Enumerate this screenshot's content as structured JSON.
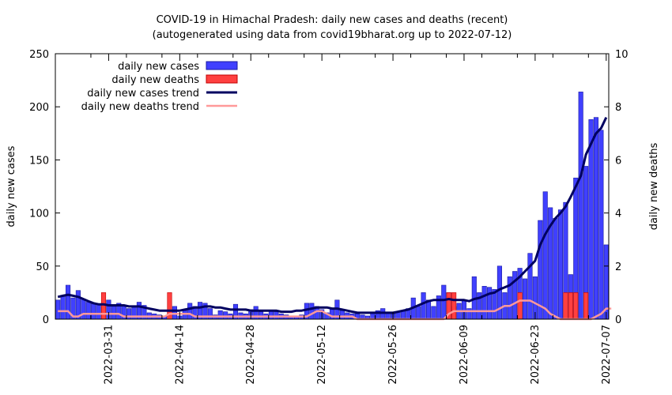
{
  "chart_data": {
    "type": "bar",
    "title": "COVID-19 in Himachal Pradesh: daily new cases and deaths (recent)",
    "subtitle": "(autogenerated using data from covid19bharat.org up to 2022-07-12)",
    "ylabel": "daily new cases",
    "y2label": "daily new deaths",
    "ylim": [
      0,
      250
    ],
    "y2lim": [
      0,
      10
    ],
    "yticks": [
      "0",
      "50",
      "100",
      "150",
      "200",
      "250"
    ],
    "y2ticks": [
      "0",
      "2",
      "4",
      "6",
      "8",
      "10"
    ],
    "x_start": "2022-03-21",
    "x_end": "2022-07-12",
    "xtick_labels": [
      "2022-03-31",
      "2022-04-14",
      "2022-04-28",
      "2022-05-12",
      "2022-05-26",
      "2022-06-09",
      "2022-06-23",
      "2022-07-07"
    ],
    "xtick_offsets": [
      10,
      24,
      38,
      52,
      66,
      80,
      94,
      108
    ],
    "legend": {
      "position": "top-left",
      "entries": [
        "daily new cases",
        "daily new deaths",
        "daily new cases trend",
        "daily new deaths trend"
      ]
    },
    "colors": {
      "cases": "#4040ff",
      "cases_edge": "#1a1aa0",
      "deaths": "#ff4040",
      "deaths_edge": "#c00000",
      "cases_trend": "#000060",
      "deaths_trend": "#ff9999"
    },
    "series": [
      {
        "name": "daily new cases",
        "values": [
          18,
          22,
          32,
          20,
          27,
          19,
          16,
          15,
          14,
          12,
          18,
          12,
          15,
          13,
          10,
          12,
          16,
          13,
          6,
          5,
          4,
          3,
          8,
          12,
          3,
          8,
          15,
          12,
          16,
          15,
          10,
          4,
          8,
          7,
          5,
          14,
          6,
          5,
          9,
          12,
          7,
          5,
          8,
          7,
          5,
          4,
          3,
          3,
          4,
          15,
          15,
          12,
          9,
          6,
          10,
          18,
          8,
          6,
          5,
          5,
          4,
          3,
          6,
          8,
          10,
          6,
          5,
          7,
          8,
          10,
          20,
          12,
          25,
          18,
          12,
          22,
          32,
          25,
          12,
          15,
          18,
          10,
          40,
          25,
          31,
          30,
          28,
          50,
          25,
          40,
          45,
          48,
          38,
          62,
          40,
          93,
          120,
          105,
          95,
          103,
          110,
          42,
          133,
          214,
          144,
          188,
          190,
          178,
          70
        ],
        "trend": [
          21,
          22,
          23,
          22,
          21,
          19,
          17,
          15,
          14,
          14,
          13,
          13,
          13,
          13,
          12,
          12,
          12,
          11,
          10,
          9,
          8,
          8,
          8,
          8,
          8,
          9,
          10,
          11,
          11,
          12,
          12,
          11,
          11,
          10,
          9,
          9,
          9,
          9,
          8,
          8,
          8,
          8,
          8,
          8,
          7,
          7,
          7,
          8,
          8,
          9,
          10,
          11,
          11,
          11,
          10,
          10,
          9,
          8,
          7,
          6,
          6,
          6,
          6,
          6,
          6,
          6,
          6,
          7,
          8,
          9,
          11,
          13,
          15,
          17,
          18,
          18,
          18,
          19,
          18,
          18,
          18,
          17,
          19,
          20,
          22,
          24,
          25,
          28,
          30,
          32,
          36,
          40,
          45,
          50,
          55,
          70,
          80,
          88,
          95,
          100,
          106,
          115,
          125,
          135,
          155,
          165,
          175,
          180,
          190
        ]
      },
      {
        "name": "daily new deaths",
        "values": [
          0,
          0,
          0,
          0,
          0,
          0,
          0,
          0,
          0,
          1,
          0,
          0,
          0,
          0,
          0,
          0,
          0,
          0,
          0,
          0,
          0,
          0,
          1,
          0,
          0,
          0,
          0,
          0,
          0,
          0,
          0,
          0,
          0,
          0,
          0,
          0,
          0,
          0,
          0,
          0,
          0,
          0,
          0,
          0,
          0,
          0,
          0,
          0,
          0,
          0,
          0,
          0,
          0,
          0,
          0,
          0,
          0,
          0,
          0,
          0,
          0,
          0,
          0,
          0,
          0,
          0,
          0,
          0,
          0,
          0,
          0,
          0,
          0,
          0,
          0,
          0,
          0,
          1,
          1,
          0,
          0,
          0,
          0,
          0,
          0,
          0,
          0,
          0,
          0,
          0,
          0,
          1,
          0,
          0,
          0,
          0,
          0,
          0,
          0,
          0,
          1,
          1,
          1,
          0,
          1,
          0,
          0,
          0,
          0
        ],
        "trend": [
          0.3,
          0.3,
          0.3,
          0.1,
          0.1,
          0.2,
          0.2,
          0.2,
          0.2,
          0.2,
          0.2,
          0.2,
          0.2,
          0.1,
          0.1,
          0.1,
          0.1,
          0.1,
          0.1,
          0.1,
          0.1,
          0.1,
          0.2,
          0.2,
          0.2,
          0.2,
          0.2,
          0.1,
          0.1,
          0.1,
          0.1,
          0.1,
          0.1,
          0.1,
          0.1,
          0.1,
          0.1,
          0.1,
          0.1,
          0.1,
          0.1,
          0.1,
          0.1,
          0.1,
          0.1,
          0.1,
          0.1,
          0.1,
          0.1,
          0.1,
          0.2,
          0.3,
          0.3,
          0.2,
          0.1,
          0.1,
          0.1,
          0.1,
          0.1,
          0.0,
          0.0,
          0.0,
          0.0,
          0.0,
          0.0,
          0.0,
          0.0,
          0.0,
          0.0,
          0.0,
          0.0,
          0.0,
          0.0,
          0.0,
          0.0,
          0.0,
          0.0,
          0.2,
          0.3,
          0.3,
          0.3,
          0.3,
          0.3,
          0.3,
          0.3,
          0.3,
          0.3,
          0.4,
          0.5,
          0.5,
          0.6,
          0.7,
          0.7,
          0.7,
          0.6,
          0.5,
          0.4,
          0.2,
          0.1,
          0.0,
          0.0,
          0.0,
          0.0,
          0.0,
          0.0,
          0.0,
          0.1,
          0.2,
          0.4,
          0.4
        ]
      }
    ],
    "grid": false
  }
}
